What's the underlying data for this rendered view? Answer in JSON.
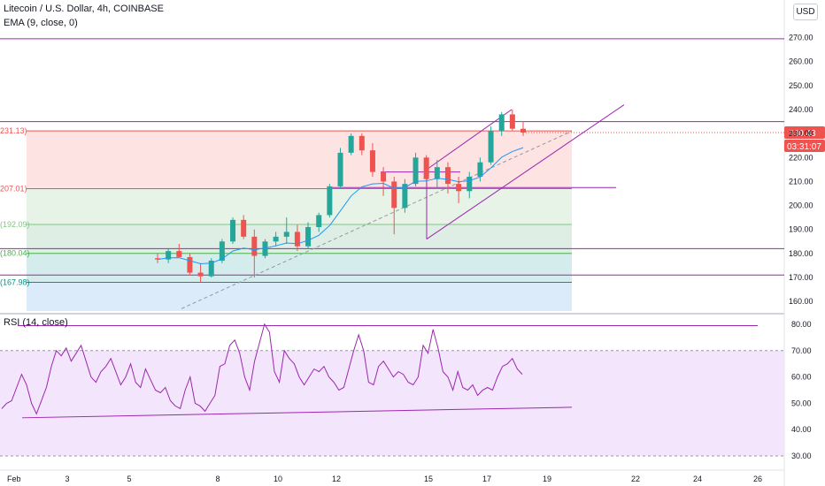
{
  "header": {
    "title": "Litecoin / U.S. Dollar, 4h, COINBASE",
    "ema_label": "EMA (9, close, 0)",
    "rsi_label": "RSI (14, close)",
    "currency_button": "USD"
  },
  "price_badges": {
    "last": "230.43",
    "countdown": "03:31:07"
  },
  "fib_labels": [
    "231.13)",
    "207.01)",
    "(192.09)",
    "(180.04)",
    "(167.98)"
  ],
  "colors": {
    "up": "#26a69a",
    "down": "#ef5350",
    "trendline": "#9c27b0",
    "ema": "#2196f3",
    "rsi_line": "#9c27b0",
    "rsi_fill": "#f3e5fb"
  },
  "chart_data": [
    {
      "type": "candlestick",
      "title": "Litecoin / U.S. Dollar, 4h, COINBASE",
      "ylim": [
        156,
        282
      ],
      "y_ticks": [
        "270.00",
        "260.00",
        "250.00",
        "240.00",
        "230.00",
        "220.00",
        "210.00",
        "200.00",
        "190.00",
        "180.00",
        "170.00",
        "160.00"
      ],
      "x_ticks": [
        "Feb",
        "3",
        "5",
        "8",
        "10",
        "12",
        "15",
        "17",
        "19",
        "22",
        "24",
        "26"
      ],
      "candles": [
        [
          178.0,
          180.0,
          176.0,
          177.5
        ],
        [
          177.5,
          182.0,
          176.0,
          181.0
        ],
        [
          181.0,
          184.0,
          179.0,
          178.5
        ],
        [
          178.5,
          180.0,
          171.0,
          172.0
        ],
        [
          172.0,
          176.0,
          168.0,
          170.5
        ],
        [
          170.5,
          178.0,
          170.0,
          177.0
        ],
        [
          177.0,
          186.0,
          176.0,
          185.0
        ],
        [
          185.0,
          195.0,
          184.0,
          194.0
        ],
        [
          194.0,
          196.0,
          186.0,
          187.0
        ],
        [
          187.0,
          190.0,
          170.0,
          179.0
        ],
        [
          179.0,
          186.0,
          178.0,
          185.0
        ],
        [
          185.0,
          189.0,
          183.0,
          187.0
        ],
        [
          187.0,
          195.0,
          184.0,
          189.0
        ],
        [
          189.0,
          192.0,
          181.0,
          183.0
        ],
        [
          183.0,
          193.0,
          182.0,
          191.0
        ],
        [
          191.0,
          197.0,
          189.0,
          196.0
        ],
        [
          196.0,
          209.0,
          195.0,
          208.0
        ],
        [
          208.0,
          224.0,
          207.0,
          222.0
        ],
        [
          222.0,
          230.0,
          221.0,
          229.0
        ],
        [
          229.0,
          230.0,
          221.0,
          223.0
        ],
        [
          223.0,
          226.0,
          212.0,
          214.0
        ],
        [
          214.0,
          216.0,
          204.0,
          210.0
        ],
        [
          210.0,
          212.0,
          188.0,
          199.0
        ],
        [
          199.0,
          211.0,
          197.0,
          209.0
        ],
        [
          209.0,
          222.0,
          208.0,
          220.0
        ],
        [
          220.0,
          221.0,
          208.0,
          211.0
        ],
        [
          211.0,
          219.0,
          207.0,
          216.0
        ],
        [
          216.0,
          218.0,
          205.0,
          209.0
        ],
        [
          209.0,
          212.0,
          201.0,
          206.0
        ],
        [
          206.0,
          214.0,
          203.0,
          212.0
        ],
        [
          212.0,
          220.0,
          210.0,
          218.0
        ],
        [
          218.0,
          233.0,
          217.0,
          231.0
        ],
        [
          231.0,
          239.0,
          229.0,
          238.0
        ],
        [
          238.0,
          240.0,
          231.0,
          232.0
        ],
        [
          232.0,
          235.0,
          229.0,
          230.43
        ]
      ],
      "last_price": 230.43,
      "fib_levels": [
        231.13,
        207.01,
        192.09,
        180.04,
        167.98
      ],
      "horizontal_levels": [
        269.5,
        235.0,
        207.5,
        182.0,
        171.0
      ],
      "ema": {
        "period": 9,
        "name": "EMA (9, close, 0)"
      }
    },
    {
      "type": "line",
      "title": "RSI (14, close)",
      "ylim": [
        27,
        83
      ],
      "y_ticks": [
        "80.00",
        "70.00",
        "60.00",
        "50.00",
        "40.00",
        "30.00"
      ],
      "bands": [
        70,
        30
      ],
      "values": [
        48,
        50,
        51,
        56,
        61,
        57,
        50,
        46,
        51,
        56,
        64,
        70,
        68,
        71,
        66,
        69,
        72,
        66,
        60,
        58,
        62,
        64,
        67,
        62,
        57,
        60,
        65,
        58,
        56,
        63,
        59,
        55,
        54,
        56,
        51,
        49,
        48,
        55,
        60,
        50,
        49,
        47,
        50,
        53,
        64,
        65,
        72,
        74,
        69,
        60,
        55,
        66,
        73,
        80,
        77,
        62,
        58,
        70,
        67,
        65,
        60,
        57,
        60,
        63,
        62,
        64,
        60,
        58,
        55,
        56,
        63,
        70,
        76,
        70,
        58,
        57,
        64,
        66,
        63,
        60,
        62,
        61,
        58,
        57,
        60,
        72,
        69,
        78,
        71,
        62,
        60,
        55,
        62,
        56,
        55,
        57,
        53,
        55,
        56,
        55,
        60,
        64,
        65,
        67,
        63,
        61
      ]
    }
  ]
}
